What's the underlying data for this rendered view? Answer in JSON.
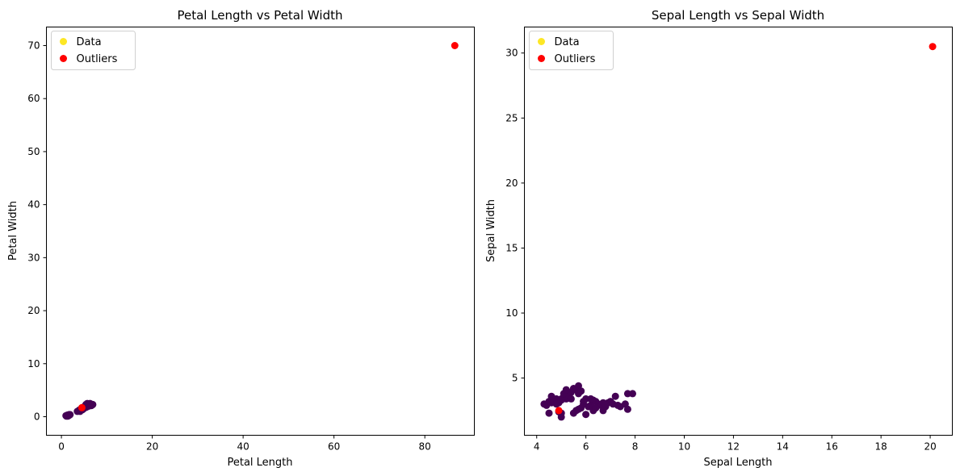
{
  "colors": {
    "data": "#440154",
    "legend_data": "#fde725",
    "outlier": "#ff0000"
  },
  "chart_data": [
    {
      "type": "scatter",
      "title": "Petal Length vs Petal Width",
      "xlabel": "Petal Length",
      "ylabel": "Petal Width",
      "xlim": [
        -3.3,
        90.9
      ],
      "ylim": [
        -3.5,
        73.5
      ],
      "xticks": [
        0,
        20,
        40,
        60,
        80
      ],
      "yticks": [
        0,
        10,
        20,
        30,
        40,
        50,
        60,
        70
      ],
      "legend": {
        "placement": "top-left",
        "entries": [
          "Data",
          "Outliers"
        ]
      },
      "series": [
        {
          "name": "Data",
          "x": [
            1.4,
            1.3,
            1.5,
            1.7,
            1.6,
            1.1,
            1.2,
            1.9,
            1.0,
            1.4,
            1.5,
            1.3,
            3.5,
            3.8,
            4.0,
            4.2,
            4.5,
            4.7,
            4.9,
            4.1,
            4.4,
            3.9,
            4.6,
            4.8,
            5.0,
            4.3,
            5.1,
            5.3,
            5.5,
            5.6,
            5.8,
            6.1,
            6.6,
            6.9,
            5.7,
            6.0,
            6.7,
            5.9,
            5.4,
            6.3
          ],
          "y": [
            0.2,
            0.2,
            0.3,
            0.4,
            0.2,
            0.1,
            0.2,
            0.4,
            0.2,
            0.1,
            0.3,
            0.3,
            1.0,
            1.1,
            1.3,
            1.3,
            1.5,
            1.4,
            1.5,
            1.0,
            1.4,
            1.2,
            1.3,
            1.8,
            1.7,
            1.3,
            1.9,
            1.9,
            1.8,
            2.1,
            2.2,
            2.3,
            2.1,
            2.3,
            2.5,
            2.0,
            2.2,
            2.1,
            2.3,
            2.5
          ]
        },
        {
          "name": "Outliers",
          "x": [
            4.5,
            86.6
          ],
          "y": [
            1.7,
            70.0
          ]
        }
      ]
    },
    {
      "type": "scatter",
      "title": "Sepal Length vs Sepal Width",
      "xlabel": "Sepal Length",
      "ylabel": "Sepal Width",
      "xlim": [
        3.5,
        20.9
      ],
      "ylim": [
        0.6,
        32.0
      ],
      "xticks": [
        4,
        6,
        8,
        10,
        12,
        14,
        16,
        18,
        20
      ],
      "yticks": [
        5,
        10,
        15,
        20,
        25,
        30
      ],
      "legend": {
        "placement": "top-left",
        "entries": [
          "Data",
          "Outliers"
        ]
      },
      "series": [
        {
          "name": "Data",
          "x": [
            4.3,
            4.4,
            4.5,
            4.6,
            4.7,
            4.8,
            4.9,
            5.0,
            5.1,
            5.2,
            5.3,
            5.4,
            5.5,
            5.6,
            5.7,
            5.8,
            4.6,
            4.8,
            5.0,
            5.1,
            5.2,
            5.4,
            5.7,
            5.8,
            4.5,
            5.0,
            5.5,
            5.6,
            5.7,
            5.8,
            5.9,
            6.0,
            6.1,
            6.2,
            6.3,
            6.4,
            6.5,
            6.6,
            6.7,
            6.8,
            6.9,
            7.0,
            7.1,
            7.2,
            7.3,
            7.4,
            7.6,
            7.7,
            7.9,
            6.0,
            6.2,
            6.3,
            6.1,
            5.9,
            6.7,
            6.4,
            6.8,
            7.7,
            5.0,
            4.9
          ],
          "y": [
            3.0,
            2.9,
            3.2,
            3.1,
            3.2,
            3.4,
            3.1,
            3.4,
            3.5,
            3.4,
            3.7,
            3.9,
            4.2,
            4.1,
            4.4,
            4.0,
            3.6,
            3.0,
            3.3,
            3.8,
            4.1,
            3.4,
            3.8,
            4.0,
            2.3,
            2.0,
            2.3,
            2.5,
            2.6,
            2.7,
            3.0,
            2.2,
            2.8,
            2.9,
            3.3,
            3.2,
            3.0,
            2.9,
            3.1,
            2.8,
            3.1,
            3.2,
            3.0,
            3.6,
            2.9,
            2.8,
            3.0,
            3.8,
            3.8,
            3.4,
            3.4,
            2.5,
            2.8,
            3.2,
            2.5,
            2.7,
            3.0,
            2.6,
            2.3,
            2.4
          ]
        },
        {
          "name": "Outliers",
          "x": [
            4.9,
            20.1
          ],
          "y": [
            2.5,
            30.5
          ]
        }
      ]
    }
  ]
}
